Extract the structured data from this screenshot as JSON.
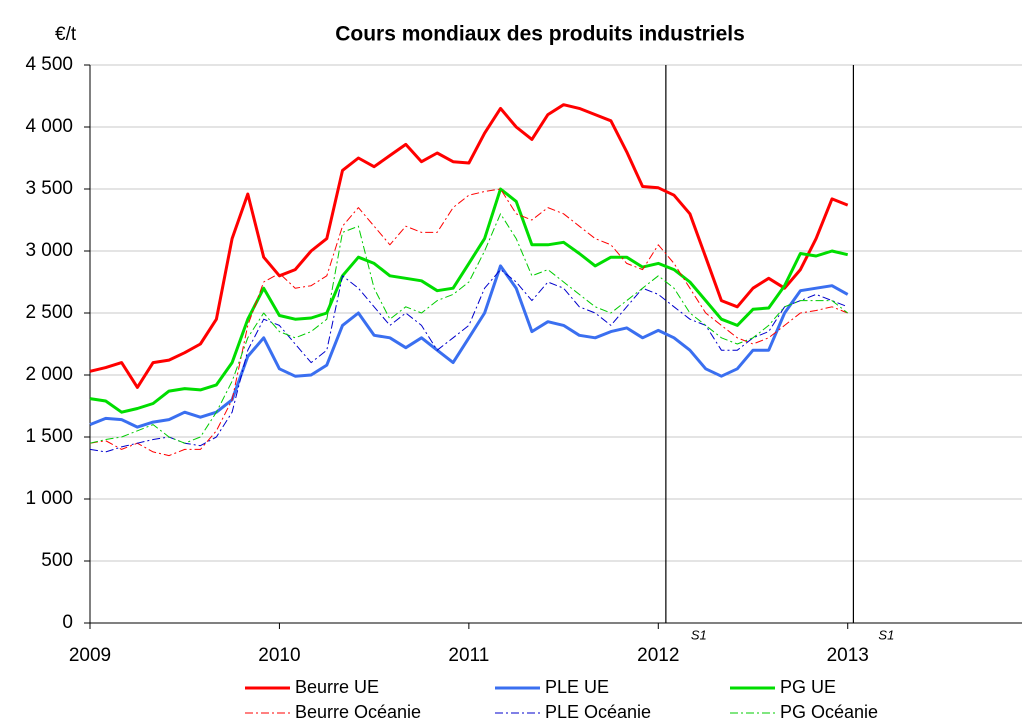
{
  "chart_data": {
    "type": "line",
    "title": "Cours mondiaux des produits industriels",
    "y_unit": "€/t",
    "x": [
      2009,
      2009.083,
      2009.167,
      2009.25,
      2009.333,
      2009.417,
      2009.5,
      2009.583,
      2009.667,
      2009.75,
      2009.833,
      2009.917,
      2010,
      2010.083,
      2010.167,
      2010.25,
      2010.333,
      2010.417,
      2010.5,
      2010.583,
      2010.667,
      2010.75,
      2010.833,
      2010.917,
      2011,
      2011.083,
      2011.167,
      2011.25,
      2011.333,
      2011.417,
      2011.5,
      2011.583,
      2011.667,
      2011.75,
      2011.833,
      2011.917,
      2012,
      2012.083,
      2012.167,
      2012.25,
      2012.333,
      2012.417,
      2012.5,
      2012.583,
      2012.667,
      2012.75,
      2012.833,
      2012.917,
      2013
    ],
    "series": [
      {
        "name": "Beurre UE",
        "color": "#ff0000",
        "dash": "solid",
        "width": 3,
        "values": [
          2030,
          2060,
          2100,
          1900,
          2100,
          2120,
          2180,
          2250,
          2450,
          3100,
          3460,
          2950,
          2800,
          2850,
          3000,
          3100,
          3650,
          3750,
          3680,
          3770,
          3860,
          3720,
          3790,
          3720,
          3710,
          3950,
          4150,
          4000,
          3900,
          4100,
          4180,
          4150,
          4100,
          4050,
          3800,
          3520,
          3510,
          3450,
          3300,
          2950,
          2600,
          2550,
          2700,
          2780,
          2700,
          2850,
          3100,
          3420,
          3370
        ]
      },
      {
        "name": "PLE UE",
        "color": "#3a6ff0",
        "dash": "solid",
        "width": 3,
        "values": [
          1600,
          1650,
          1640,
          1580,
          1620,
          1640,
          1700,
          1660,
          1700,
          1800,
          2150,
          2300,
          2050,
          1990,
          2000,
          2080,
          2400,
          2500,
          2320,
          2300,
          2220,
          2300,
          2200,
          2100,
          2300,
          2500,
          2880,
          2700,
          2350,
          2430,
          2400,
          2320,
          2300,
          2350,
          2380,
          2300,
          2360,
          2300,
          2200,
          2050,
          1990,
          2050,
          2200,
          2200,
          2500,
          2680,
          2700,
          2720,
          2650
        ]
      },
      {
        "name": "PG UE",
        "color": "#00dd00",
        "dash": "solid",
        "width": 3,
        "values": [
          1810,
          1790,
          1700,
          1730,
          1770,
          1870,
          1890,
          1880,
          1920,
          2100,
          2450,
          2700,
          2480,
          2450,
          2460,
          2500,
          2800,
          2950,
          2900,
          2800,
          2780,
          2760,
          2680,
          2700,
          2900,
          3100,
          3500,
          3400,
          3050,
          3050,
          3070,
          2980,
          2880,
          2950,
          2950,
          2870,
          2900,
          2850,
          2750,
          2600,
          2450,
          2400,
          2530,
          2540,
          2720,
          2980,
          2960,
          3000,
          2970
        ]
      },
      {
        "name": "Beurre Océanie",
        "color": "#ff0000",
        "dash": "dashdot",
        "width": 1,
        "values": [
          1450,
          1470,
          1400,
          1450,
          1380,
          1350,
          1400,
          1400,
          1550,
          1800,
          2400,
          2750,
          2820,
          2700,
          2720,
          2800,
          3200,
          3350,
          3200,
          3050,
          3200,
          3150,
          3150,
          3350,
          3450,
          3480,
          3500,
          3300,
          3250,
          3350,
          3300,
          3200,
          3100,
          3050,
          2900,
          2850,
          3050,
          2900,
          2700,
          2500,
          2400,
          2300,
          2250,
          2300,
          2400,
          2500,
          2520,
          2550,
          2500
        ]
      },
      {
        "name": "PLE Océanie",
        "color": "#0000cc",
        "dash": "dashdot",
        "width": 1,
        "values": [
          1400,
          1380,
          1420,
          1450,
          1480,
          1500,
          1450,
          1430,
          1500,
          1700,
          2200,
          2450,
          2400,
          2250,
          2100,
          2200,
          2800,
          2700,
          2550,
          2400,
          2500,
          2400,
          2200,
          2300,
          2400,
          2700,
          2850,
          2750,
          2600,
          2750,
          2700,
          2550,
          2500,
          2400,
          2550,
          2700,
          2650,
          2550,
          2450,
          2400,
          2200,
          2200,
          2300,
          2350,
          2550,
          2600,
          2650,
          2600,
          2550
        ]
      },
      {
        "name": "PG Océanie",
        "color": "#00cc00",
        "dash": "dashdot",
        "width": 1,
        "values": [
          1450,
          1480,
          1500,
          1550,
          1600,
          1500,
          1450,
          1500,
          1700,
          1950,
          2300,
          2500,
          2350,
          2300,
          2350,
          2450,
          3150,
          3200,
          2700,
          2450,
          2550,
          2500,
          2600,
          2650,
          2750,
          3000,
          3300,
          3100,
          2800,
          2850,
          2750,
          2650,
          2550,
          2500,
          2600,
          2700,
          2800,
          2700,
          2500,
          2400,
          2300,
          2250,
          2300,
          2400,
          2550,
          2600,
          2600,
          2600,
          2500
        ]
      }
    ],
    "xlim": [
      2009,
      2013.92
    ],
    "xticks": [
      2009,
      2010,
      2011,
      2012,
      2013
    ],
    "ylim": [
      0,
      4500
    ],
    "yticks": [
      0,
      500,
      {
        "value": 1000,
        "label": "1 000"
      },
      {
        "value": 1500,
        "label": "1 500"
      },
      {
        "value": 2000,
        "label": "2 000"
      },
      {
        "value": 2500,
        "label": "2 500"
      },
      {
        "value": 3000,
        "label": "3 000"
      },
      {
        "value": 3500,
        "label": "3 500"
      },
      {
        "value": 4000,
        "label": "4 000"
      },
      {
        "value": 4500,
        "label": "4 500"
      }
    ],
    "grid": true,
    "legend": "bottom",
    "annotations": [
      {
        "x": 2012.04,
        "label": "S1"
      },
      {
        "x": 2013.03,
        "label": "S1"
      }
    ]
  }
}
